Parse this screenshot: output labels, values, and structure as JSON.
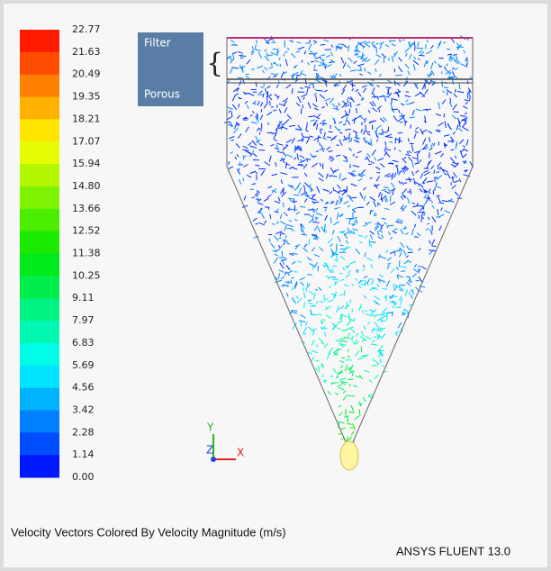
{
  "legend": {
    "labels": [
      "22.77",
      "21.63",
      "20.49",
      "19.35",
      "18.21",
      "17.07",
      "15.94",
      "14.80",
      "13.66",
      "12.52",
      "11.38",
      "10.25",
      "9.11",
      "7.97",
      "6.83",
      "5.69",
      "4.56",
      "3.42",
      "2.28",
      "1.14",
      "0.00"
    ]
  },
  "annotations": {
    "filter": "Filter",
    "porous": "Porous"
  },
  "triad": {
    "y": "Y",
    "z": "Z",
    "x": "X"
  },
  "caption": "Velocity Vectors Colored By Velocity Magnitude (m/s)",
  "software": "ANSYS FLUENT 13.0"
}
